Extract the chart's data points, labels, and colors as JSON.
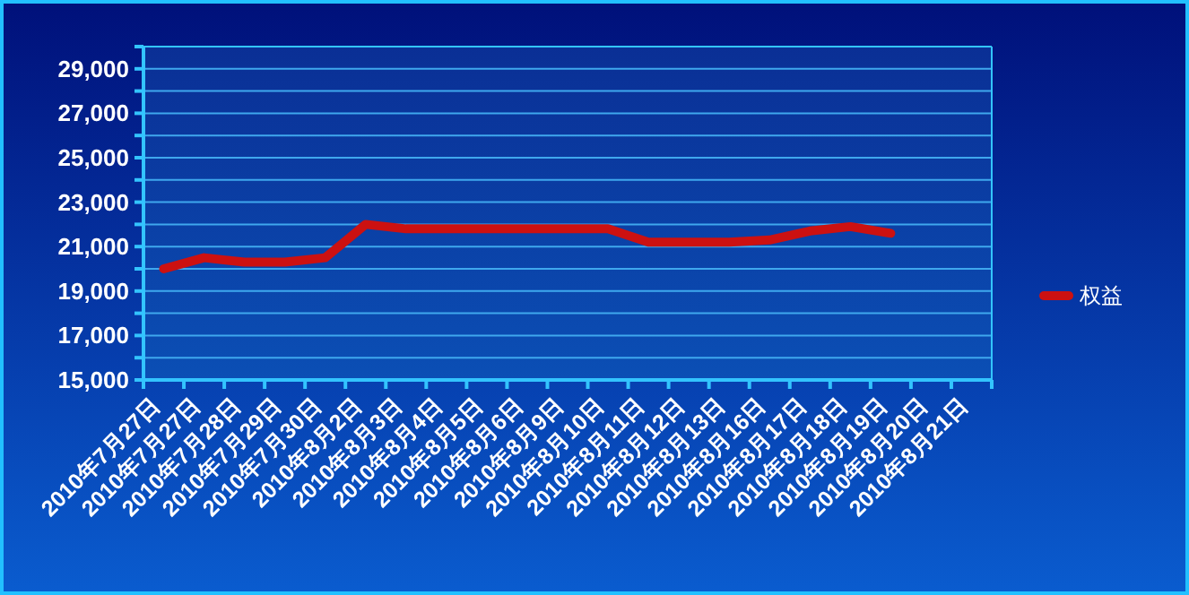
{
  "chart_data": {
    "type": "line",
    "categories": [
      "2010年7月27日",
      "2010年7月27日",
      "2010年7月28日",
      "2010年7月29日",
      "2010年7月30日",
      "2010年8月2日",
      "2010年8月3日",
      "2010年8月4日",
      "2010年8月5日",
      "2010年8月6日",
      "2010年8月9日",
      "2010年8月10日",
      "2010年8月11日",
      "2010年8月12日",
      "2010年8月13日",
      "2010年8月16日",
      "2010年8月17日",
      "2010年8月18日",
      "2010年8月19日",
      "2010年8月20日",
      "2010年8月21日"
    ],
    "series": [
      {
        "name": "权益",
        "color": "#cc1111",
        "values": [
          20000,
          20500,
          20300,
          20300,
          20500,
          22000,
          21800,
          21800,
          21800,
          21800,
          21800,
          21800,
          21200,
          21200,
          21200,
          21300,
          21700,
          21900,
          21600,
          null,
          null
        ]
      }
    ],
    "ylim": [
      15000,
      30000
    ],
    "yticks": [
      {
        "value": 15000,
        "label": "15,000"
      },
      {
        "value": 16000,
        "label": null
      },
      {
        "value": 17000,
        "label": "17,000"
      },
      {
        "value": 18000,
        "label": null
      },
      {
        "value": 19000,
        "label": "19,000"
      },
      {
        "value": 20000,
        "label": null
      },
      {
        "value": 21000,
        "label": "21,000"
      },
      {
        "value": 22000,
        "label": null
      },
      {
        "value": 23000,
        "label": "23,000"
      },
      {
        "value": 24000,
        "label": null
      },
      {
        "value": 25000,
        "label": "25,000"
      },
      {
        "value": 26000,
        "label": null
      },
      {
        "value": 27000,
        "label": "27,000"
      },
      {
        "value": 28000,
        "label": null
      },
      {
        "value": 29000,
        "label": "29,000"
      },
      {
        "value": 30000,
        "label": null
      }
    ],
    "grid": "y",
    "legend": "right",
    "marker": "none",
    "line_style": "solid"
  }
}
